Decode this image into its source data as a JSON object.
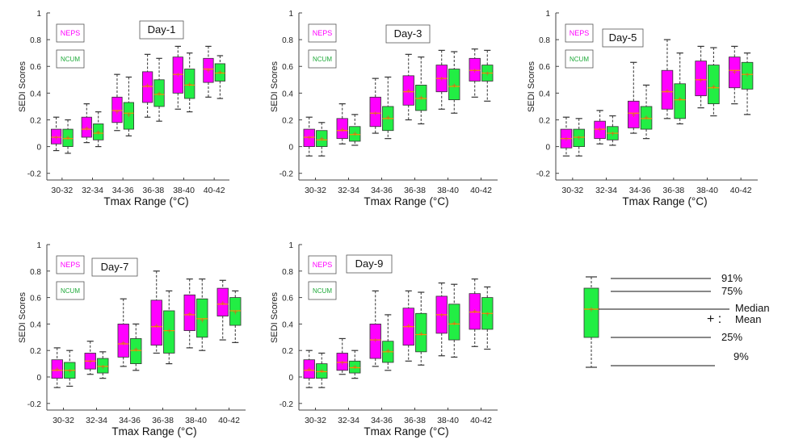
{
  "colors": {
    "neps": "#ff00ff",
    "ncum": "#22ee44",
    "mean_marker": "#d2691e",
    "median": "#ff8c00",
    "whisker": "#333333"
  },
  "legend_labels": {
    "neps": "NEPS",
    "ncum": "NCUM"
  },
  "key": {
    "labels": {
      "p91": "91%",
      "p75": "75%",
      "median": "Median",
      "plus": "+ :",
      "mean": "Mean",
      "p25": "25%",
      "p9": "9%"
    }
  },
  "chart_data": [
    {
      "type": "box",
      "title": "Day-1",
      "xlabel": "Tmax Range (°C)",
      "ylabel": "SEDI Scores",
      "ylim": [
        -0.25,
        1
      ],
      "yticks": [
        "-0.2",
        "0",
        "0.2",
        "0.4",
        "0.6",
        "0.8",
        "1"
      ],
      "categories": [
        "30-32",
        "32-34",
        "34-36",
        "36-38",
        "38-40",
        "40-42"
      ],
      "series": [
        {
          "name": "NEPS",
          "boxes": [
            {
              "p9": -0.03,
              "p25": 0.02,
              "median": 0.07,
              "mean": 0.07,
              "p75": 0.13,
              "p91": 0.22
            },
            {
              "p9": 0.03,
              "p25": 0.07,
              "median": 0.13,
              "mean": 0.14,
              "p75": 0.22,
              "p91": 0.32
            },
            {
              "p9": 0.12,
              "p25": 0.18,
              "median": 0.27,
              "mean": 0.26,
              "p75": 0.37,
              "p91": 0.54
            },
            {
              "p9": 0.22,
              "p25": 0.33,
              "median": 0.45,
              "mean": 0.46,
              "p75": 0.56,
              "p91": 0.69
            },
            {
              "p9": 0.28,
              "p25": 0.4,
              "median": 0.54,
              "mean": 0.54,
              "p75": 0.67,
              "p91": 0.75
            },
            {
              "p9": 0.37,
              "p25": 0.48,
              "median": 0.58,
              "mean": 0.57,
              "p75": 0.66,
              "p91": 0.75
            }
          ]
        },
        {
          "name": "NCUM",
          "boxes": [
            {
              "p9": -0.05,
              "p25": 0.0,
              "median": 0.06,
              "mean": 0.07,
              "p75": 0.13,
              "p91": 0.2
            },
            {
              "p9": 0.0,
              "p25": 0.05,
              "median": 0.1,
              "mean": 0.11,
              "p75": 0.17,
              "p91": 0.26
            },
            {
              "p9": 0.08,
              "p25": 0.13,
              "median": 0.25,
              "mean": 0.24,
              "p75": 0.33,
              "p91": 0.52
            },
            {
              "p9": 0.19,
              "p25": 0.3,
              "median": 0.39,
              "mean": 0.4,
              "p75": 0.5,
              "p91": 0.66
            },
            {
              "p9": 0.26,
              "p25": 0.36,
              "median": 0.46,
              "mean": 0.47,
              "p75": 0.58,
              "p91": 0.7
            },
            {
              "p9": 0.36,
              "p25": 0.49,
              "median": 0.55,
              "mean": 0.56,
              "p75": 0.62,
              "p91": 0.68
            }
          ]
        }
      ]
    },
    {
      "type": "box",
      "title": "Day-3",
      "xlabel": "Tmax Range (°C)",
      "ylabel": "SEDI Scores",
      "ylim": [
        -0.25,
        1
      ],
      "yticks": [
        "-0.2",
        "0",
        "0.2",
        "0.4",
        "0.6",
        "0.8",
        "1"
      ],
      "categories": [
        "30-32",
        "32-34",
        "34-36",
        "36-38",
        "38-40",
        "40-42"
      ],
      "series": [
        {
          "name": "NEPS",
          "boxes": [
            {
              "p9": -0.07,
              "p25": 0.0,
              "median": 0.07,
              "mean": 0.07,
              "p75": 0.13,
              "p91": 0.22
            },
            {
              "p9": 0.02,
              "p25": 0.06,
              "median": 0.12,
              "mean": 0.13,
              "p75": 0.21,
              "p91": 0.32
            },
            {
              "p9": 0.1,
              "p25": 0.15,
              "median": 0.25,
              "mean": 0.25,
              "p75": 0.37,
              "p91": 0.51
            },
            {
              "p9": 0.2,
              "p25": 0.31,
              "median": 0.41,
              "mean": 0.42,
              "p75": 0.53,
              "p91": 0.69
            },
            {
              "p9": 0.28,
              "p25": 0.41,
              "median": 0.51,
              "mean": 0.51,
              "p75": 0.61,
              "p91": 0.72
            },
            {
              "p9": 0.37,
              "p25": 0.49,
              "median": 0.57,
              "mean": 0.57,
              "p75": 0.66,
              "p91": 0.73
            }
          ]
        },
        {
          "name": "NCUM",
          "boxes": [
            {
              "p9": -0.07,
              "p25": 0.0,
              "median": 0.05,
              "mean": 0.06,
              "p75": 0.12,
              "p91": 0.18
            },
            {
              "p9": 0.01,
              "p25": 0.04,
              "median": 0.09,
              "mean": 0.1,
              "p75": 0.15,
              "p91": 0.24
            },
            {
              "p9": 0.06,
              "p25": 0.12,
              "median": 0.21,
              "mean": 0.22,
              "p75": 0.3,
              "p91": 0.52
            },
            {
              "p9": 0.17,
              "p25": 0.27,
              "median": 0.36,
              "mean": 0.37,
              "p75": 0.46,
              "p91": 0.67
            },
            {
              "p9": 0.25,
              "p25": 0.35,
              "median": 0.45,
              "mean": 0.46,
              "p75": 0.58,
              "p91": 0.71
            },
            {
              "p9": 0.34,
              "p25": 0.49,
              "median": 0.55,
              "mean": 0.55,
              "p75": 0.61,
              "p91": 0.72
            }
          ]
        }
      ]
    },
    {
      "type": "box",
      "title": "Day-5",
      "xlabel": "Tmax Range (°C)",
      "ylabel": "SEDI Scores",
      "ylim": [
        -0.25,
        1
      ],
      "yticks": [
        "-0.2",
        "0",
        "0.2",
        "0.4",
        "0.6",
        "0.8",
        "1"
      ],
      "categories": [
        "30-32",
        "32-34",
        "34-36",
        "36-38",
        "38-40",
        "40-42"
      ],
      "series": [
        {
          "name": "NEPS",
          "boxes": [
            {
              "p9": -0.07,
              "p25": -0.01,
              "median": 0.06,
              "mean": 0.06,
              "p75": 0.13,
              "p91": 0.22
            },
            {
              "p9": 0.02,
              "p25": 0.06,
              "median": 0.13,
              "mean": 0.13,
              "p75": 0.19,
              "p91": 0.27
            },
            {
              "p9": 0.1,
              "p25": 0.14,
              "median": 0.25,
              "mean": 0.24,
              "p75": 0.34,
              "p91": 0.63
            },
            {
              "p9": 0.21,
              "p25": 0.28,
              "median": 0.41,
              "mean": 0.42,
              "p75": 0.57,
              "p91": 0.8
            },
            {
              "p9": 0.29,
              "p25": 0.38,
              "median": 0.5,
              "mean": 0.5,
              "p75": 0.64,
              "p91": 0.75
            },
            {
              "p9": 0.32,
              "p25": 0.44,
              "median": 0.57,
              "mean": 0.56,
              "p75": 0.67,
              "p91": 0.75
            }
          ]
        },
        {
          "name": "NCUM",
          "boxes": [
            {
              "p9": -0.07,
              "p25": 0.0,
              "median": 0.07,
              "mean": 0.07,
              "p75": 0.13,
              "p91": 0.21
            },
            {
              "p9": 0.01,
              "p25": 0.05,
              "median": 0.1,
              "mean": 0.1,
              "p75": 0.15,
              "p91": 0.23
            },
            {
              "p9": 0.06,
              "p25": 0.13,
              "median": 0.21,
              "mean": 0.22,
              "p75": 0.3,
              "p91": 0.46
            },
            {
              "p9": 0.17,
              "p25": 0.21,
              "median": 0.35,
              "mean": 0.36,
              "p75": 0.47,
              "p91": 0.7
            },
            {
              "p9": 0.23,
              "p25": 0.32,
              "median": 0.44,
              "mean": 0.45,
              "p75": 0.61,
              "p91": 0.74
            },
            {
              "p9": 0.24,
              "p25": 0.43,
              "median": 0.54,
              "mean": 0.54,
              "p75": 0.63,
              "p91": 0.7
            }
          ]
        }
      ]
    },
    {
      "type": "box",
      "title": "Day-7",
      "xlabel": "Tmax Range (°C)",
      "ylabel": "SEDI Scores",
      "ylim": [
        -0.25,
        1
      ],
      "yticks": [
        "-0.2",
        "0",
        "0.2",
        "0.4",
        "0.6",
        "0.8",
        "1"
      ],
      "categories": [
        "30-32",
        "32-34",
        "34-36",
        "36-38",
        "38-40",
        "40-42"
      ],
      "series": [
        {
          "name": "NEPS",
          "boxes": [
            {
              "p9": -0.08,
              "p25": -0.01,
              "median": 0.05,
              "mean": 0.06,
              "p75": 0.13,
              "p91": 0.22
            },
            {
              "p9": 0.02,
              "p25": 0.06,
              "median": 0.12,
              "mean": 0.12,
              "p75": 0.18,
              "p91": 0.27
            },
            {
              "p9": 0.08,
              "p25": 0.15,
              "median": 0.25,
              "mean": 0.26,
              "p75": 0.4,
              "p91": 0.59
            },
            {
              "p9": 0.18,
              "p25": 0.24,
              "median": 0.38,
              "mean": 0.39,
              "p75": 0.58,
              "p91": 0.8
            },
            {
              "p9": 0.22,
              "p25": 0.35,
              "median": 0.47,
              "mean": 0.48,
              "p75": 0.62,
              "p91": 0.74
            },
            {
              "p9": 0.28,
              "p25": 0.46,
              "median": 0.55,
              "mean": 0.56,
              "p75": 0.67,
              "p91": 0.73
            }
          ]
        },
        {
          "name": "NCUM",
          "boxes": [
            {
              "p9": -0.07,
              "p25": -0.01,
              "median": 0.05,
              "mean": 0.05,
              "p75": 0.11,
              "p91": 0.2
            },
            {
              "p9": -0.01,
              "p25": 0.03,
              "median": 0.08,
              "mean": 0.08,
              "p75": 0.14,
              "p91": 0.19
            },
            {
              "p9": 0.05,
              "p25": 0.1,
              "median": 0.2,
              "mean": 0.21,
              "p75": 0.29,
              "p91": 0.4
            },
            {
              "p9": 0.1,
              "p25": 0.18,
              "median": 0.35,
              "mean": 0.35,
              "p75": 0.5,
              "p91": 0.65
            },
            {
              "p9": 0.2,
              "p25": 0.3,
              "median": 0.44,
              "mean": 0.43,
              "p75": 0.59,
              "p91": 0.74
            },
            {
              "p9": 0.26,
              "p25": 0.39,
              "median": 0.5,
              "mean": 0.49,
              "p75": 0.6,
              "p91": 0.65
            }
          ]
        }
      ]
    },
    {
      "type": "box",
      "title": "Day-9",
      "xlabel": "Tmax Range (°C)",
      "ylabel": "SEDI Scores",
      "ylim": [
        -0.25,
        1
      ],
      "yticks": [
        "-0.2",
        "0",
        "0.2",
        "0.4",
        "0.6",
        "0.8",
        "1"
      ],
      "categories": [
        "30-32",
        "32-34",
        "34-36",
        "36-38",
        "38-40",
        "40-42"
      ],
      "series": [
        {
          "name": "NEPS",
          "boxes": [
            {
              "p9": -0.08,
              "p25": -0.01,
              "median": 0.05,
              "mean": 0.06,
              "p75": 0.13,
              "p91": 0.2
            },
            {
              "p9": 0.02,
              "p25": 0.05,
              "median": 0.11,
              "mean": 0.11,
              "p75": 0.18,
              "p91": 0.29
            },
            {
              "p9": 0.08,
              "p25": 0.14,
              "median": 0.28,
              "mean": 0.28,
              "p75": 0.4,
              "p91": 0.65
            },
            {
              "p9": 0.12,
              "p25": 0.24,
              "median": 0.38,
              "mean": 0.39,
              "p75": 0.52,
              "p91": 0.65
            },
            {
              "p9": 0.16,
              "p25": 0.33,
              "median": 0.47,
              "mean": 0.47,
              "p75": 0.61,
              "p91": 0.71
            },
            {
              "p9": 0.23,
              "p25": 0.36,
              "median": 0.49,
              "mean": 0.5,
              "p75": 0.63,
              "p91": 0.74
            }
          ]
        },
        {
          "name": "NCUM",
          "boxes": [
            {
              "p9": -0.08,
              "p25": -0.01,
              "median": 0.04,
              "mean": 0.05,
              "p75": 0.1,
              "p91": 0.18
            },
            {
              "p9": -0.01,
              "p25": 0.03,
              "median": 0.07,
              "mean": 0.08,
              "p75": 0.12,
              "p91": 0.2
            },
            {
              "p9": 0.05,
              "p25": 0.11,
              "median": 0.19,
              "mean": 0.2,
              "p75": 0.27,
              "p91": 0.47
            },
            {
              "p9": 0.09,
              "p25": 0.19,
              "median": 0.32,
              "mean": 0.33,
              "p75": 0.48,
              "p91": 0.64
            },
            {
              "p9": 0.15,
              "p25": 0.28,
              "median": 0.4,
              "mean": 0.41,
              "p75": 0.55,
              "p91": 0.7
            },
            {
              "p9": 0.21,
              "p25": 0.36,
              "median": 0.48,
              "mean": 0.48,
              "p75": 0.6,
              "p91": 0.68
            }
          ]
        }
      ]
    }
  ]
}
